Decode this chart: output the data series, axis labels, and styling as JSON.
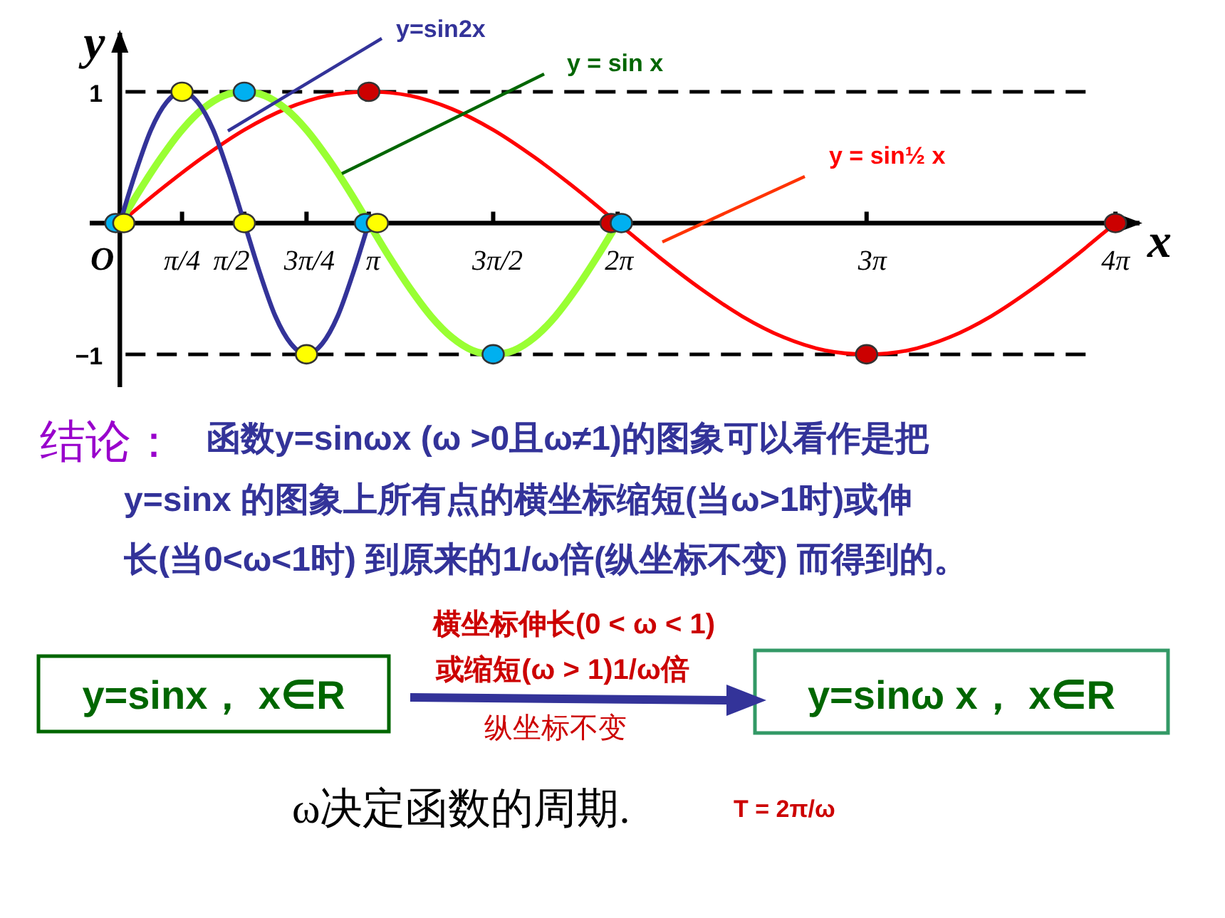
{
  "chart_data": {
    "type": "line",
    "xlabel": "x",
    "ylabel": "y",
    "xlim": [
      -0.38,
      12.87
    ],
    "ylim": [
      -1.25,
      1.45
    ],
    "xticks": [
      {
        "value": 0,
        "label": "O"
      },
      {
        "value": 0.785,
        "label": "π/4"
      },
      {
        "value": 1.571,
        "label": "π/2"
      },
      {
        "value": 2.356,
        "label": "3π/4"
      },
      {
        "value": 3.142,
        "label": "π"
      },
      {
        "value": 4.712,
        "label": "3π/2"
      },
      {
        "value": 6.283,
        "label": "2π"
      },
      {
        "value": 9.425,
        "label": "3π"
      },
      {
        "value": 12.566,
        "label": "4π"
      }
    ],
    "yticks": [
      1,
      {
        "value": -1,
        "label": "−1"
      }
    ],
    "series": [
      {
        "name": "y = sin½ x",
        "type": "line",
        "color": "#ff0000",
        "x": [
          0,
          0.524,
          1.047,
          1.571,
          2.094,
          2.618,
          3.142,
          3.665,
          4.189,
          4.712,
          5.236,
          5.76,
          6.283,
          6.807,
          7.33,
          7.854,
          8.378,
          8.901,
          9.425,
          9.948,
          10.472,
          10.996,
          11.519,
          12.043,
          12.566
        ],
        "values": [
          0,
          0.26,
          0.5,
          0.71,
          0.87,
          0.97,
          1,
          0.97,
          0.87,
          0.71,
          0.5,
          0.26,
          0,
          -0.26,
          -0.5,
          -0.71,
          -0.87,
          -0.97,
          -1,
          -0.97,
          -0.87,
          -0.71,
          -0.5,
          -0.26,
          0
        ]
      },
      {
        "name": "y = sin x",
        "type": "line",
        "color": "#99ff33",
        "x": [
          0,
          0.262,
          0.524,
          0.785,
          1.047,
          1.309,
          1.571,
          1.833,
          2.094,
          2.356,
          2.618,
          2.88,
          3.142,
          3.403,
          3.665,
          3.927,
          4.189,
          4.451,
          4.712,
          4.974,
          5.236,
          5.498,
          5.76,
          6.021,
          6.283
        ],
        "values": [
          0,
          0.26,
          0.5,
          0.71,
          0.87,
          0.97,
          1,
          0.97,
          0.87,
          0.71,
          0.5,
          0.26,
          0,
          -0.26,
          -0.5,
          -0.71,
          -0.87,
          -0.97,
          -1,
          -0.97,
          -0.87,
          -0.71,
          -0.5,
          -0.26,
          0
        ]
      },
      {
        "name": "y=sin2x",
        "type": "line",
        "color": "#333399",
        "x": [
          0,
          0.196,
          0.393,
          0.589,
          0.785,
          0.982,
          1.178,
          1.374,
          1.571,
          1.767,
          1.963,
          2.16,
          2.356,
          2.553,
          2.749,
          2.945,
          3.142
        ],
        "values": [
          0,
          0.38,
          0.71,
          0.92,
          1,
          0.92,
          0.71,
          0.38,
          0,
          -0.38,
          -0.71,
          -0.92,
          -1,
          -0.92,
          -0.71,
          -0.38,
          0
        ]
      },
      {
        "type": "scatter",
        "color": "#cc0000",
        "x": [
          3.142,
          6.2,
          9.425,
          12.566
        ],
        "values": [
          1,
          0,
          -1,
          0
        ]
      },
      {
        "type": "scatter",
        "color": "#00b0f0",
        "x": [
          -0.05,
          1.571,
          3.1,
          4.712,
          6.33
        ],
        "values": [
          0,
          1,
          0,
          -1,
          0
        ]
      },
      {
        "type": "scatter",
        "color": "#ffff00",
        "x": [
          0.05,
          0.785,
          1.571,
          2.356,
          3.25
        ],
        "values": [
          0,
          1,
          0,
          -1,
          0
        ]
      }
    ],
    "ref_lines": [
      {
        "axis": "y",
        "value": 1,
        "color": "#000000",
        "line_style": "dashed"
      },
      {
        "axis": "y",
        "value": -1,
        "color": "#000000",
        "line_style": "dashed"
      }
    ],
    "annotations": [
      "结论：",
      "函数y=sinωx (ω >0且ω≠1)的图象可以看作是把",
      "y=sinx 的图象上所有点的横坐标缩短(当ω>1时)或伸",
      "长(当0<ω<1时) 到原来的1/ω倍(纵坐标不变) 而得到的。",
      "y=sinx，  x∈R",
      "横坐标伸长(0 < ω < 1)",
      "或缩短(ω > 1)1/ω倍",
      "纵坐标不变",
      "y=sinω x，  x∈R",
      "ω决定函数的周期.",
      "T = 2π/ω"
    ]
  }
}
